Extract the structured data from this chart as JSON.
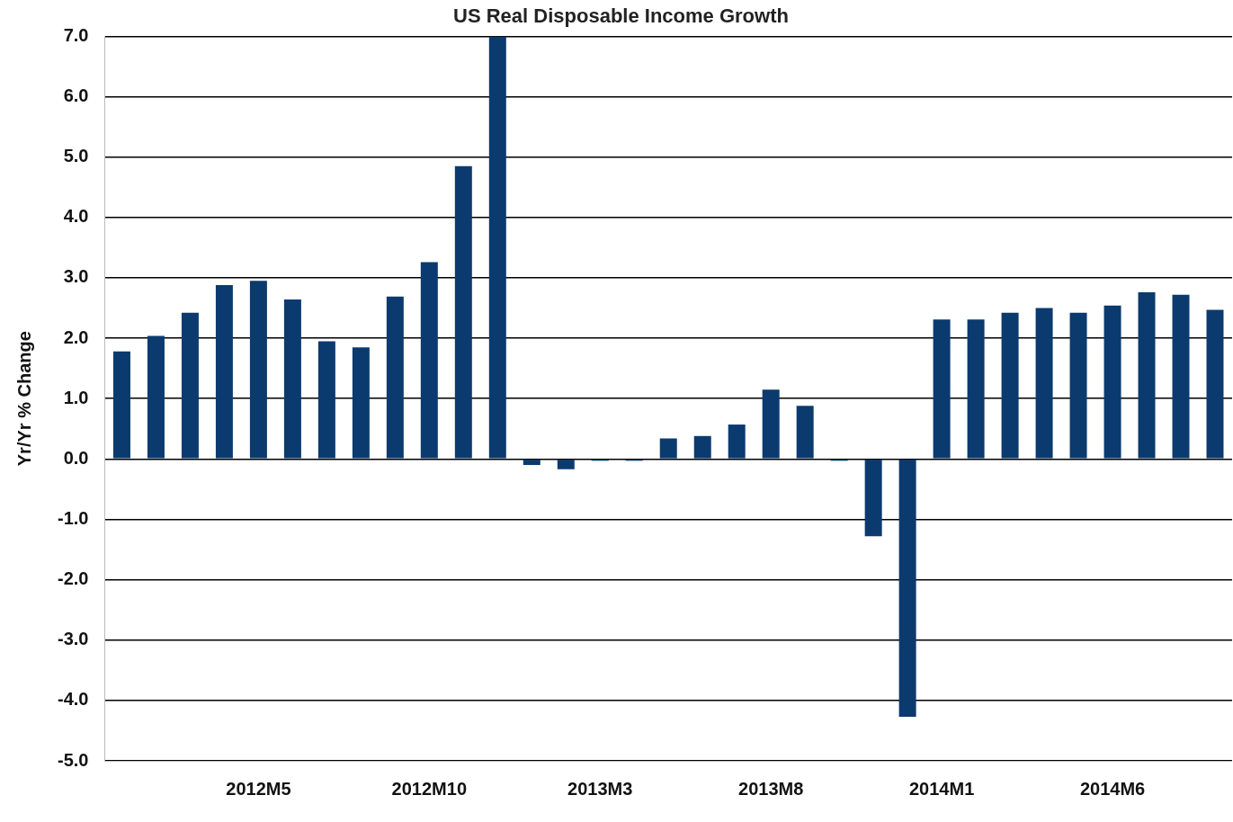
{
  "chart_data": {
    "type": "bar",
    "title": "US Real Disposable Income Growth",
    "ylabel": "Yr/Yr % Change",
    "categories": [
      null,
      null,
      null,
      null,
      "2012M5",
      null,
      null,
      null,
      null,
      "2012M10",
      null,
      null,
      null,
      null,
      "2013M3",
      null,
      null,
      null,
      null,
      "2013M8",
      null,
      null,
      null,
      null,
      "2014M1",
      null,
      null,
      null,
      null,
      "2014M6",
      null,
      null,
      null
    ],
    "values": [
      1.78,
      2.04,
      2.42,
      2.88,
      2.95,
      2.64,
      1.95,
      1.85,
      2.69,
      3.26,
      4.85,
      7.0,
      -0.1,
      -0.17,
      -0.03,
      -0.03,
      0.34,
      0.38,
      0.57,
      1.15,
      0.88,
      -0.03,
      -1.28,
      -4.27,
      2.31,
      2.31,
      2.42,
      2.5,
      2.42,
      2.54,
      2.76,
      2.72,
      2.47
    ],
    "color": "#0b3a6e",
    "ylim": [
      -5,
      7
    ],
    "yticks": [
      {
        "value": -5,
        "label": "-5.0"
      },
      {
        "value": -4,
        "label": "-4.0"
      },
      {
        "value": -3,
        "label": "-3.0"
      },
      {
        "value": -2,
        "label": "-2.0"
      },
      {
        "value": -1,
        "label": "-1.0"
      },
      {
        "value": 0,
        "label": "0.0"
      },
      {
        "value": 1,
        "label": "1.0"
      },
      {
        "value": 2,
        "label": "2.0"
      },
      {
        "value": 3,
        "label": "3.0"
      },
      {
        "value": 4,
        "label": "4.0"
      },
      {
        "value": 5,
        "label": "5.0"
      },
      {
        "value": 6,
        "label": "6.0"
      },
      {
        "value": 7,
        "label": "7.0"
      }
    ],
    "grid": "y"
  }
}
